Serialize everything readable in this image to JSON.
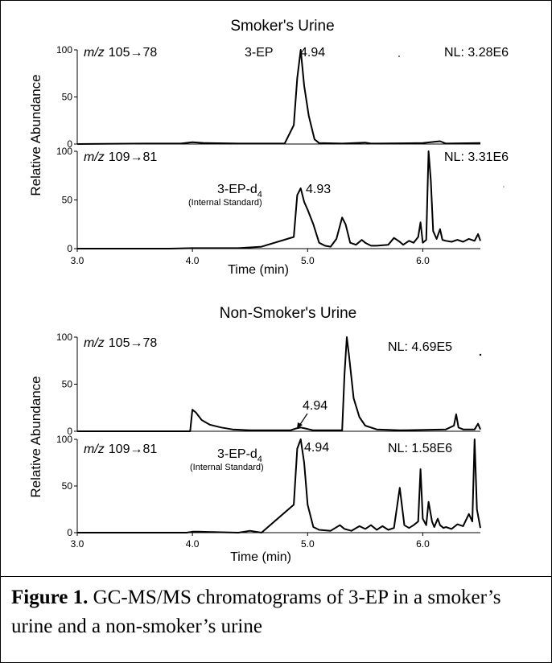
{
  "caption": {
    "label": "Figure 1.",
    "text": "GC-MS/MS chromatograms of 3-EP in a smoker’s urine and a non-smoker’s urine"
  },
  "chart_data": [
    {
      "type": "line",
      "title": "Smoker's Urine",
      "ylabel": "Relative Abundance",
      "xlabel": "Time (min)",
      "xlim": [
        3.0,
        6.5
      ],
      "x_ticks": [
        "3.0",
        "4.0",
        "5.0",
        "6.0"
      ],
      "panels": [
        {
          "transition_prefix": "m/z",
          "transition": "105→78",
          "normalization": "NL: 3.28E6",
          "ylim": [
            0,
            100
          ],
          "y_ticks": [
            "0",
            "50",
            "100"
          ],
          "annotations": [
            {
              "text": "3-EP"
            },
            {
              "text": "4.94"
            }
          ],
          "series": [
            {
              "x": [
                3.0,
                3.6,
                3.9,
                4.0,
                4.1,
                4.4,
                4.8,
                4.88,
                4.91,
                4.94,
                4.97,
                5.01,
                5.06,
                5.1,
                5.3,
                5.5,
                5.55,
                5.6,
                6.0,
                6.15,
                6.2,
                6.5
              ],
              "y": [
                0,
                0.5,
                0.5,
                2,
                1,
                0.5,
                0.5,
                20,
                70,
                100,
                62,
                30,
                5,
                1,
                0.5,
                1.5,
                0.5,
                0.5,
                1,
                3,
                0.5,
                1
              ]
            }
          ]
        },
        {
          "transition_prefix": "m/z",
          "transition": "109→81",
          "normalization": "NL: 3.31E6",
          "ylim": [
            0,
            100
          ],
          "y_ticks": [
            "0",
            "50",
            "100"
          ],
          "annotations": [
            {
              "text": "3-EP-d",
              "subscript": "4"
            },
            {
              "text": "(Internal Standard)"
            },
            {
              "text": "4.93"
            }
          ],
          "series": [
            {
              "x": [
                3.0,
                3.8,
                4.0,
                4.4,
                4.6,
                4.88,
                4.91,
                4.94,
                4.97,
                5.0,
                5.05,
                5.1,
                5.15,
                5.2,
                5.25,
                5.3,
                5.33,
                5.37,
                5.42,
                5.47,
                5.5,
                5.55,
                5.6,
                5.7,
                5.75,
                5.8,
                5.83,
                5.88,
                5.92,
                5.96,
                5.98,
                6.0,
                6.03,
                6.05,
                6.07,
                6.09,
                6.12,
                6.15,
                6.17,
                6.2,
                6.25,
                6.3,
                6.35,
                6.4,
                6.45,
                6.48,
                6.5
              ],
              "y": [
                0,
                0,
                0.5,
                0.5,
                2,
                12,
                55,
                62,
                48,
                40,
                25,
                6,
                3,
                2,
                10,
                32,
                25,
                6,
                4,
                9,
                6,
                3,
                3,
                4,
                11,
                7,
                4,
                8,
                6,
                12,
                27,
                6,
                9,
                100,
                70,
                18,
                10,
                20,
                9,
                8,
                7,
                9,
                7,
                10,
                8,
                15,
                8
              ]
            }
          ]
        }
      ]
    },
    {
      "type": "line",
      "title": "Non-Smoker's Urine",
      "ylabel": "Relative Abundance",
      "xlabel": "Time (min)",
      "xlim": [
        3.0,
        6.5
      ],
      "x_ticks": [
        "3.0",
        "4.0",
        "5.0",
        "6.0"
      ],
      "panels": [
        {
          "transition_prefix": "m/z",
          "transition": "105→78",
          "normalization": "NL: 4.69E5",
          "ylim": [
            0,
            100
          ],
          "y_ticks": [
            "0",
            "50",
            "100"
          ],
          "annotations": [
            {
              "text": "4.94"
            }
          ],
          "series": [
            {
              "x": [
                3.0,
                3.98,
                4.0,
                4.03,
                4.08,
                4.15,
                4.25,
                4.35,
                4.5,
                4.85,
                4.9,
                4.94,
                4.98,
                5.05,
                5.3,
                5.32,
                5.34,
                5.36,
                5.4,
                5.45,
                5.5,
                5.6,
                5.8,
                6.2,
                6.27,
                6.29,
                6.31,
                6.35,
                6.45,
                6.48,
                6.5
              ],
              "y": [
                0,
                0,
                23,
                20,
                12,
                7,
                4,
                2,
                1,
                1,
                3,
                4,
                3,
                1,
                1,
                60,
                100,
                80,
                35,
                15,
                6,
                2,
                1,
                2,
                6,
                18,
                4,
                2,
                2,
                8,
                2
              ]
            }
          ]
        },
        {
          "transition_prefix": "m/z",
          "transition": "109→81",
          "normalization": "NL: 1.58E6",
          "ylim": [
            0,
            100
          ],
          "y_ticks": [
            "0",
            "50",
            "100"
          ],
          "annotations": [
            {
              "text": "3-EP-d",
              "subscript": "4"
            },
            {
              "text": "(Internal Standard)"
            },
            {
              "text": "4.94"
            }
          ],
          "series": [
            {
              "x": [
                3.0,
                3.95,
                4.0,
                4.05,
                4.4,
                4.5,
                4.6,
                4.88,
                4.91,
                4.94,
                4.97,
                5.0,
                5.05,
                5.1,
                5.2,
                5.28,
                5.32,
                5.38,
                5.45,
                5.5,
                5.55,
                5.6,
                5.65,
                5.7,
                5.75,
                5.8,
                5.84,
                5.88,
                5.92,
                5.96,
                5.98,
                6.0,
                6.03,
                6.05,
                6.08,
                6.1,
                6.13,
                6.15,
                6.18,
                6.2,
                6.25,
                6.3,
                6.35,
                6.4,
                6.43,
                6.45,
                6.47,
                6.5
              ],
              "y": [
                0,
                0,
                1,
                1,
                0,
                2,
                0,
                30,
                90,
                100,
                75,
                30,
                6,
                3,
                2,
                8,
                4,
                2,
                7,
                4,
                8,
                3,
                7,
                3,
                5,
                48,
                8,
                5,
                8,
                12,
                68,
                15,
                8,
                33,
                12,
                6,
                15,
                8,
                5,
                6,
                4,
                9,
                7,
                20,
                12,
                100,
                25,
                5
              ]
            }
          ]
        }
      ]
    }
  ]
}
